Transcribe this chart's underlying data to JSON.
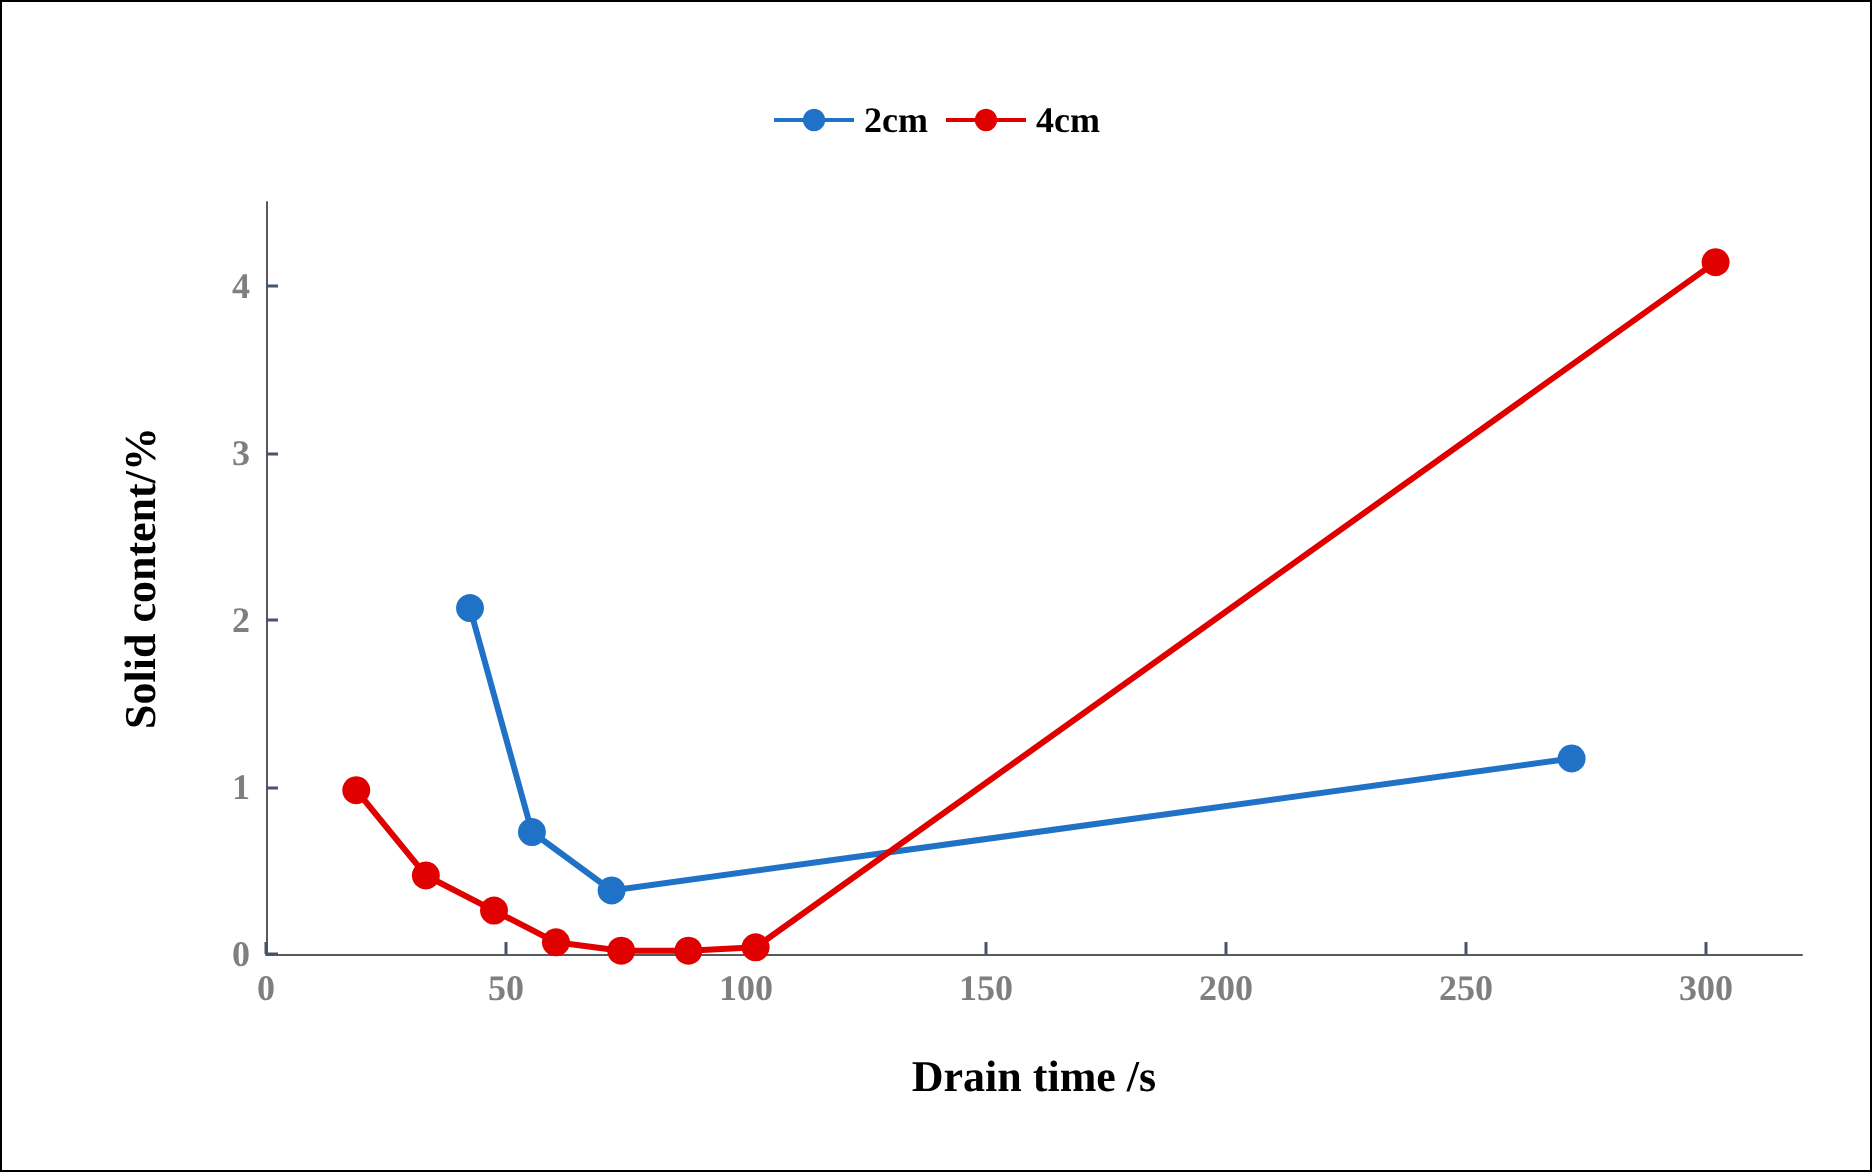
{
  "chart_data": {
    "type": "line",
    "xlabel": "Drain time /s",
    "ylabel": "Solid content/%",
    "series": [
      {
        "name": "2cm",
        "color": "#1f72c6",
        "x": [
          42.5,
          55.4,
          72,
          272
        ],
        "values": [
          2.07,
          0.73,
          0.38,
          1.17
        ]
      },
      {
        "name": "4cm",
        "color": "#e00000",
        "x": [
          18.8,
          33.3,
          47.5,
          60.4,
          74,
          88,
          102,
          302
        ],
        "values": [
          0.98,
          0.47,
          0.26,
          0.07,
          0.02,
          0.02,
          0.04,
          4.14
        ]
      }
    ],
    "xlim": [
      0,
      320
    ],
    "xticks": [
      0,
      50,
      100,
      150,
      200,
      250,
      300
    ],
    "ylim": [
      0,
      4.5
    ],
    "yticks": [
      0,
      1,
      2,
      3,
      4
    ],
    "grid": false,
    "legend": "top",
    "marker": "circle",
    "line_style": "solid"
  }
}
